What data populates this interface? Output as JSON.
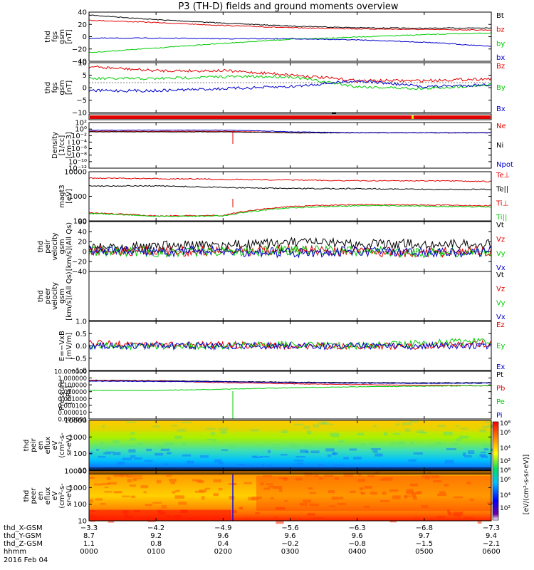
{
  "title": "P3 (TH-D) fields and ground moments overview",
  "colors": {
    "black": "#000000",
    "red": "#e00000",
    "green": "#00cc00",
    "blue": "#0000cc",
    "yellow": "#e0e000"
  },
  "panels": [
    {
      "id": "fgs",
      "ylabel": [
        "thd",
        "fgs",
        "gsm",
        "[nT]"
      ],
      "ticks": [
        "40",
        "20",
        "0",
        "−20",
        "−40"
      ],
      "legend": [
        {
          "text": "Bt",
          "color": "black"
        },
        {
          "text": "bz",
          "color": "red"
        },
        {
          "text": "by",
          "color": "green"
        },
        {
          "text": "bx",
          "color": "blue"
        }
      ]
    },
    {
      "id": "fgs_zoom",
      "ylabel": [
        "thd",
        "fgs",
        "gsm",
        "[nT]"
      ],
      "ticks": [
        "10",
        "5",
        "0",
        "−5",
        "−10"
      ],
      "legend": [
        {
          "text": "Bz",
          "color": "red"
        },
        {
          "text": "By",
          "color": "green"
        },
        {
          "text": "Bx",
          "color": "blue"
        }
      ]
    },
    {
      "id": "density",
      "ylabel": [
        "Density",
        "[1/cc]",
        "[cm−3]"
      ],
      "ticks": [
        "10²",
        "10⁰",
        "10⁻²",
        "10⁻⁴",
        "10⁻⁶",
        "10⁻⁸",
        "10⁻¹⁰",
        "10⁻¹²"
      ],
      "legend": [
        {
          "text": "Ne",
          "color": "red"
        },
        {
          "text": "Ni",
          "color": "black"
        },
        {
          "text": "Npot",
          "color": "blue"
        }
      ]
    },
    {
      "id": "temp",
      "ylabel": [
        "magt3",
        "[eV]"
      ],
      "ticks": [
        "10000",
        "1000",
        "100"
      ],
      "legend": [
        {
          "text": "Te⊥",
          "color": "red"
        },
        {
          "text": "Te||",
          "color": "black"
        },
        {
          "text": "Ti⊥",
          "color": "red"
        },
        {
          "text": "Ti||",
          "color": "green"
        }
      ]
    },
    {
      "id": "peir_vel",
      "ylabel": [
        "thd",
        "peir",
        "velocity",
        "gsm",
        "[km/s](All Qs)"
      ],
      "ticks": [
        "60",
        "40",
        "20",
        "0",
        "−20",
        "−40"
      ],
      "legend": [
        {
          "text": "Vt",
          "color": "black"
        },
        {
          "text": "Vz",
          "color": "red"
        },
        {
          "text": "Vy",
          "color": "green"
        },
        {
          "text": "Vx",
          "color": "blue"
        }
      ]
    },
    {
      "id": "peer_vel",
      "ylabel": [
        "thd",
        "peer",
        "velocity",
        "gsm",
        "[km/s](All Qs)"
      ],
      "ticks": [],
      "legend": [
        {
          "text": "Vt",
          "color": "black"
        },
        {
          "text": "Vz",
          "color": "red"
        },
        {
          "text": "Vy",
          "color": "green"
        },
        {
          "text": "Vx",
          "color": "blue"
        }
      ]
    },
    {
      "id": "efield",
      "ylabel": [
        "E=−VxB",
        "[mV/m]"
      ],
      "ticks": [
        "1.0",
        "0.5",
        "0.0",
        "−0.5",
        "−1.0"
      ],
      "legend": [
        {
          "text": "Ez",
          "color": "red"
        },
        {
          "text": "Ey",
          "color": "green"
        },
        {
          "text": "Ex",
          "color": "blue"
        }
      ]
    },
    {
      "id": "pressure",
      "ylabel": [
        "Pressure",
        "[nPa]"
      ],
      "ticks": [
        "10.000000",
        "1.000000",
        "0.100000",
        "0.010000",
        "0.001000",
        "0.000100",
        "0.000010",
        "0.000001"
      ],
      "legend": [
        {
          "text": "Pt",
          "color": "black"
        },
        {
          "text": "Pb",
          "color": "red"
        },
        {
          "text": "Pe",
          "color": "green"
        },
        {
          "text": "Pi",
          "color": "blue"
        }
      ]
    },
    {
      "id": "peir_spec",
      "ylabel": [
        "thd",
        "peir",
        "en",
        "eflux",
        "eV",
        "(cm²-s-",
        "sr-eV)"
      ],
      "ticks": [
        "10000",
        "1000",
        "100",
        "10"
      ],
      "legend": []
    },
    {
      "id": "peer_spec",
      "ylabel": [
        "thd",
        "peer",
        "en",
        "eflux",
        "eV",
        "(cm²-s-",
        "sr-eV)"
      ],
      "ticks": [
        "10000",
        "1000",
        "100",
        "10"
      ],
      "legend": []
    }
  ],
  "colorbar": {
    "ticks": [
      "10⁸",
      "10⁶",
      "10⁴",
      "10²"
    ],
    "label": "[eV/(cm²-s-sr-eV)]"
  },
  "xaxis": {
    "rows": [
      {
        "label": "thd_X-GSM",
        "values": [
          "−3.3",
          "−4.2",
          "−4.9",
          "−5.6",
          "−6.3",
          "−6.8",
          "−7.3"
        ]
      },
      {
        "label": "thd_Y-GSM",
        "values": [
          "8.7",
          "9.2",
          "9.6",
          "9.6",
          "9.6",
          "9.7",
          "9.4"
        ]
      },
      {
        "label": "thd_Z-GSM",
        "values": [
          "1.1",
          "0.8",
          "0.4",
          "−0.2",
          "−0.8",
          "−1.5",
          "−2.1"
        ]
      },
      {
        "label": "hhmm",
        "values": [
          "0000",
          "0100",
          "0200",
          "0300",
          "0400",
          "0500",
          "0600"
        ]
      }
    ],
    "date": "2016 Feb 04"
  },
  "chart_data": [
    {
      "type": "line",
      "title": "P3 (TH-D) fields and ground moments overview",
      "x_hours": [
        0,
        1,
        2,
        3,
        4,
        5,
        6
      ],
      "series": [
        {
          "name": "Bt",
          "values": [
            40,
            32,
            26,
            21,
            18,
            17,
            18
          ]
        },
        {
          "name": "bz",
          "values": [
            31,
            27,
            22,
            18,
            16,
            15,
            14
          ]
        },
        {
          "name": "by",
          "values": [
            -25,
            -17,
            -9,
            -2,
            2,
            6,
            9
          ]
        },
        {
          "name": "bx",
          "values": [
            0,
            0,
            -1,
            -1,
            -3,
            -7,
            -14
          ]
        }
      ],
      "ylim": [
        -40,
        45
      ]
    },
    {
      "type": "line",
      "x_hours": [
        0,
        1,
        2,
        3,
        4,
        5,
        6
      ],
      "series": [
        {
          "name": "Bz",
          "values": [
            8,
            6,
            6,
            4,
            1,
            1,
            2
          ]
        },
        {
          "name": "By",
          "values": [
            2,
            2,
            3,
            3,
            -2,
            -3,
            -1
          ]
        },
        {
          "name": "Bx",
          "values": [
            -4,
            -4,
            -3,
            -2,
            1,
            -2,
            -1
          ]
        }
      ],
      "ylim": [
        -15,
        10
      ]
    },
    {
      "type": "line",
      "x_hours": [
        0,
        1,
        2,
        3,
        4,
        5,
        6
      ],
      "series": [
        {
          "name": "Ne",
          "values": [
            0.3,
            0.3,
            0.3,
            0.1,
            0.1,
            0.1,
            0.1
          ]
        },
        {
          "name": "Ni",
          "values": [
            0.2,
            0.2,
            0.2,
            0.1,
            0.1,
            0.1,
            0.1
          ]
        },
        {
          "name": "Npot",
          "values": [
            0.6,
            0.7,
            0.7,
            0.2,
            0.1,
            0.1,
            0.1
          ]
        }
      ],
      "ylog": true
    },
    {
      "type": "line",
      "x_hours": [
        0,
        1,
        2,
        3,
        4,
        5,
        6
      ],
      "series": [
        {
          "name": "Te⊥",
          "values": [
            7500,
            7000,
            6500,
            6000,
            5500,
            5500,
            5000
          ]
        },
        {
          "name": "Te||",
          "values": [
            3000,
            3000,
            2500,
            2200,
            2200,
            2000,
            2000
          ]
        },
        {
          "name": "Ti⊥",
          "values": [
            130,
            90,
            95,
            270,
            340,
            320,
            300
          ]
        },
        {
          "name": "Ti||",
          "values": [
            120,
            85,
            90,
            230,
            300,
            280,
            260
          ]
        }
      ],
      "ylog": true
    },
    {
      "type": "line",
      "x_hours": [
        0,
        1,
        2,
        3,
        4,
        5,
        6
      ],
      "series": [
        {
          "name": "Vt",
          "values": [
            10,
            12,
            12,
            18,
            15,
            15,
            15
          ]
        },
        {
          "name": "Vz",
          "values": [
            2,
            1,
            0,
            3,
            0,
            -2,
            2
          ]
        },
        {
          "name": "Vy",
          "values": [
            0,
            -1,
            0,
            2,
            1,
            -3,
            -1
          ]
        },
        {
          "name": "Vx",
          "values": [
            0,
            0,
            0,
            -2,
            0,
            -2,
            0
          ]
        }
      ],
      "ylim": [
        -40,
        60
      ]
    },
    {
      "type": "line",
      "x_hours": [
        0,
        1,
        2,
        3,
        4,
        5,
        6
      ],
      "series": []
    },
    {
      "type": "line",
      "x_hours": [
        0,
        1,
        2,
        3,
        4,
        5,
        6
      ],
      "series": [
        {
          "name": "Ez",
          "values": [
            0.1,
            0.05,
            0.05,
            0.0,
            0.0,
            0.0,
            0.1
          ]
        },
        {
          "name": "Ey",
          "values": [
            0.0,
            0.0,
            0.0,
            0.05,
            0.0,
            0.1,
            0.2
          ]
        },
        {
          "name": "Ex",
          "values": [
            0.0,
            0.0,
            0.0,
            0.0,
            0.0,
            0.0,
            0.0
          ]
        }
      ],
      "ylim": [
        -1.0,
        1.0
      ]
    },
    {
      "type": "line",
      "x_hours": [
        0,
        1,
        2,
        3,
        4,
        5,
        6
      ],
      "series": [
        {
          "name": "Pt",
          "values": [
            0.7,
            0.6,
            0.45,
            0.35,
            0.3,
            0.28,
            0.3
          ]
        },
        {
          "name": "Pb",
          "values": [
            0.6,
            0.5,
            0.3,
            0.2,
            0.15,
            0.12,
            0.1
          ]
        },
        {
          "name": "Pe",
          "values": [
            0.02,
            0.02,
            0.03,
            0.05,
            0.07,
            0.09,
            0.1
          ]
        },
        {
          "name": "Pi",
          "values": [
            0.5,
            0.45,
            0.4,
            0.3,
            0.25,
            0.23,
            0.25
          ]
        }
      ],
      "ylog": true
    },
    {
      "type": "heatmap",
      "x_hours": [
        0,
        6
      ],
      "ylim": [
        10,
        10000
      ],
      "ylog": true,
      "zlog": true
    },
    {
      "type": "heatmap",
      "x_hours": [
        0,
        6
      ],
      "ylim": [
        10,
        10000
      ],
      "ylog": true,
      "zlog": true
    }
  ]
}
